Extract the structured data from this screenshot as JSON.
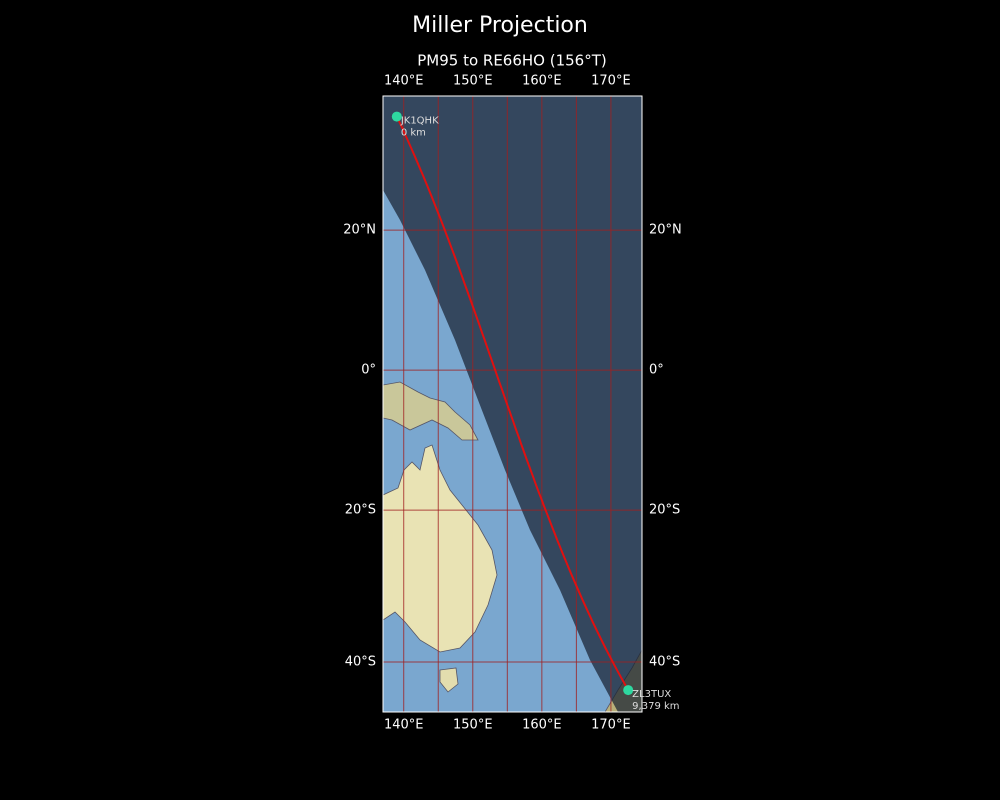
{
  "map": {
    "title": "Miller Projection",
    "subtitle": "PM95 to RE66HO (156°T)",
    "projection": "miller",
    "lon_range": [
      137,
      174.5
    ],
    "lat_range": [
      -46,
      37.8
    ],
    "lon_ticks": [
      {
        "value": 140,
        "label": "140°E"
      },
      {
        "value": 150,
        "label": "150°E"
      },
      {
        "value": 160,
        "label": "160°E"
      },
      {
        "value": 170,
        "label": "170°E"
      }
    ],
    "lat_ticks": [
      {
        "value": 20,
        "label": "20°N"
      },
      {
        "value": 0,
        "label": "0°"
      },
      {
        "value": -20,
        "label": "20°S"
      },
      {
        "value": -40,
        "label": "40°S"
      }
    ],
    "lon_grid": [
      140,
      145,
      150,
      155,
      160,
      165,
      170
    ],
    "lat_grid": [
      20,
      0,
      -20,
      -40
    ],
    "path_color": "#e01010",
    "station_color": "#2ed8a0",
    "stations": [
      {
        "name": "JK1QHK",
        "lat": 35.2,
        "lon": 139.0,
        "distance_km": 0,
        "distance_label": "0 km"
      },
      {
        "name": "ZL3TUX",
        "lat": -43.4,
        "lon": 172.5,
        "distance_km": 9379,
        "distance_label": "9,379 km"
      }
    ]
  }
}
